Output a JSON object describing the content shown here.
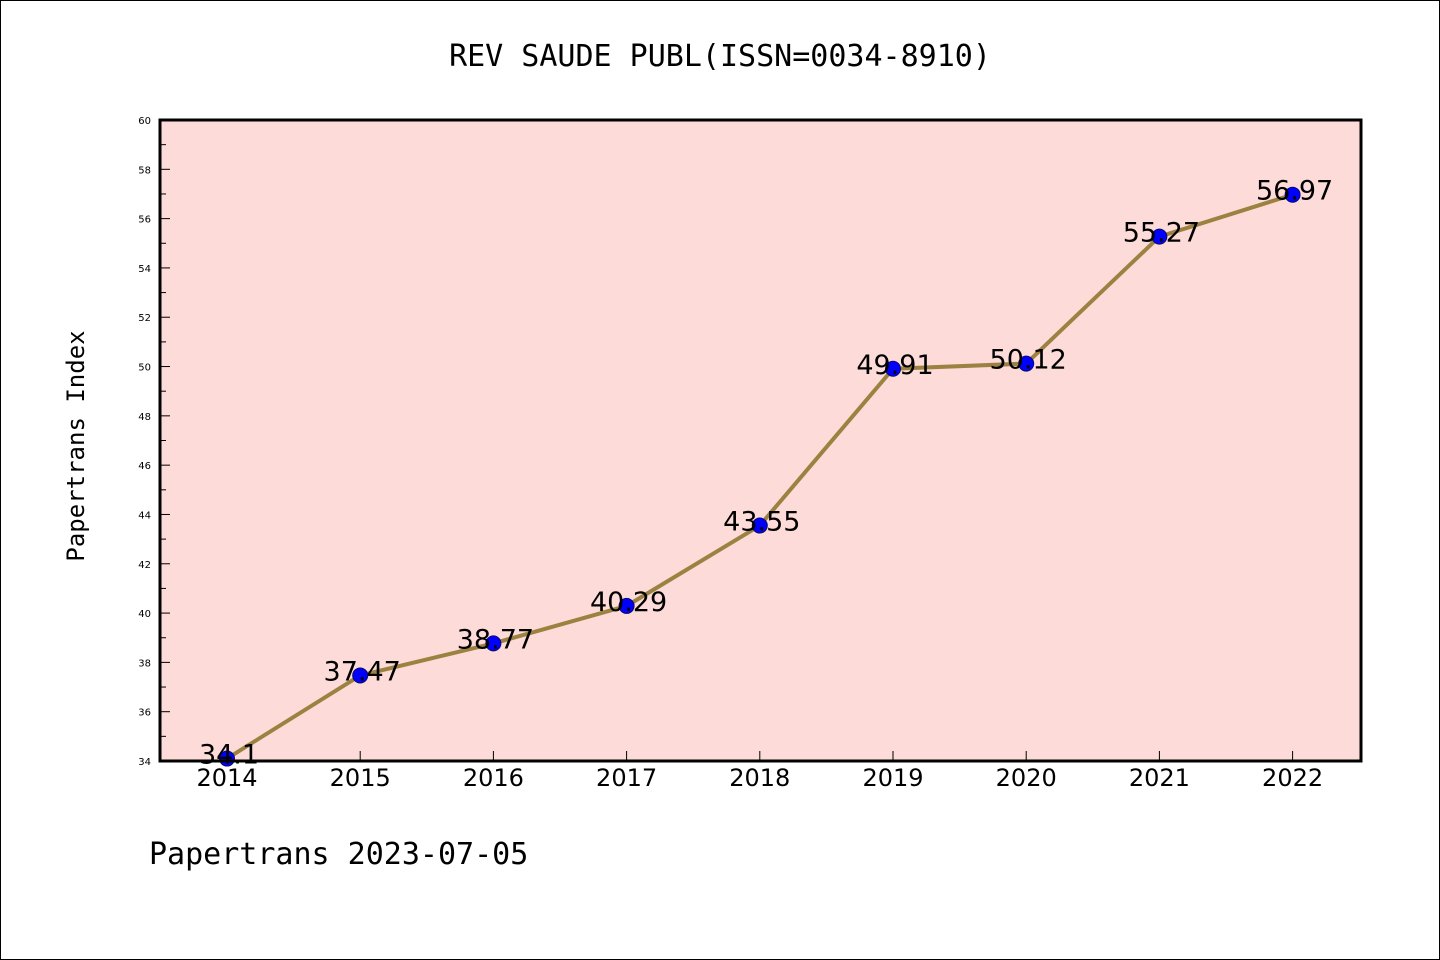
{
  "chart_data": {
    "type": "line",
    "title": "REV SAUDE PUBL(ISSN=0034-8910)",
    "xlabel": "",
    "ylabel": "Papertrans Index",
    "categories": [
      "2014",
      "2015",
      "2016",
      "2017",
      "2018",
      "2019",
      "2020",
      "2021",
      "2022"
    ],
    "series": [
      {
        "values": [
          34.1,
          37.47,
          38.77,
          40.29,
          43.55,
          49.91,
          50.12,
          55.27,
          56.97
        ],
        "labels": [
          "34.1",
          "37.47",
          "38.77",
          "40.29",
          "43.55",
          "49.91",
          "50.12",
          "55.27",
          "56.97"
        ]
      }
    ],
    "ylim": [
      34,
      60
    ],
    "yticks": [
      "34",
      "36",
      "38",
      "40",
      "42",
      "44",
      "46",
      "48",
      "50",
      "52",
      "54",
      "56",
      "58",
      "60"
    ],
    "grid": false,
    "legend": "none",
    "colors": {
      "plot_background": "#fddbd8",
      "line": "#9b8240",
      "marker_fill": "#0000ff",
      "marker_edge": "#0a0a6e",
      "axis": "#000000",
      "text": "#000000"
    }
  },
  "footer": {
    "text": "Papertrans 2023-07-05"
  }
}
